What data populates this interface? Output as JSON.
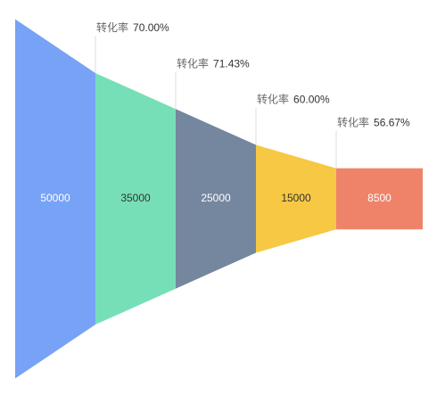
{
  "chart_data": {
    "type": "funnel",
    "values": [
      50000,
      35000,
      25000,
      15000,
      8500
    ],
    "colors": [
      "#77a2f6",
      "#77dfb7",
      "#75869f",
      "#f6c844",
      "#ef8369"
    ],
    "conversion": {
      "label": "转化率",
      "values": [
        70,
        71.43,
        60,
        56.67
      ],
      "value_labels": [
        "70.00%",
        "71.43%",
        "60.00%",
        "56.67%"
      ]
    }
  }
}
